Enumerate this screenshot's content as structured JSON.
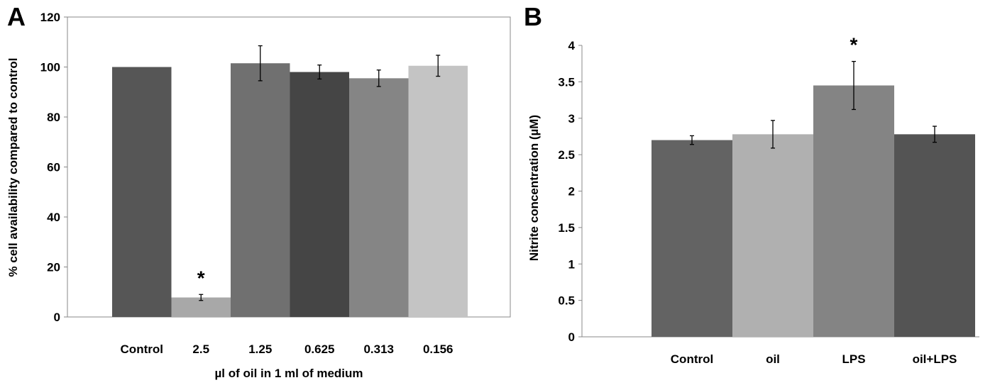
{
  "chart_data": [
    {
      "type": "bar",
      "panel": "A",
      "categories": [
        "Control",
        "2.5",
        "1.25",
        "0.625",
        "0.313",
        "0.156"
      ],
      "values": [
        100,
        7.8,
        101.5,
        98,
        95.5,
        100.5
      ],
      "errors": [
        0,
        1.2,
        7,
        2.8,
        3.3,
        4.2
      ],
      "colors": [
        "#565656",
        "#a8a8a8",
        "#707070",
        "#454545",
        "#858585",
        "#c4c4c4"
      ],
      "significance": [
        "",
        "*",
        "",
        "",
        "",
        ""
      ],
      "title": "",
      "xlabel": "µl of oil in 1 ml of medium",
      "ylabel": "% cell availability compared to control",
      "ylim": [
        0,
        120
      ],
      "yticks": [
        "0",
        "20",
        "40",
        "60",
        "80",
        "100",
        "120"
      ],
      "frame": true
    },
    {
      "type": "bar",
      "panel": "B",
      "categories": [
        "Control",
        "oil",
        "LPS",
        "oil+LPS"
      ],
      "values": [
        2.7,
        2.78,
        3.45,
        2.78
      ],
      "errors": [
        0.06,
        0.19,
        0.33,
        0.11
      ],
      "colors": [
        "#636363",
        "#b0b0b0",
        "#848484",
        "#545454"
      ],
      "significance": [
        "",
        "",
        "*",
        ""
      ],
      "title": "",
      "xlabel": "",
      "ylabel": "Nitrite concentration (µM)",
      "ylim": [
        0,
        4
      ],
      "yticks": [
        "0",
        "0.5",
        "1",
        "1.5",
        "2",
        "2.5",
        "3",
        "3.5",
        "4"
      ],
      "frame": false
    }
  ]
}
